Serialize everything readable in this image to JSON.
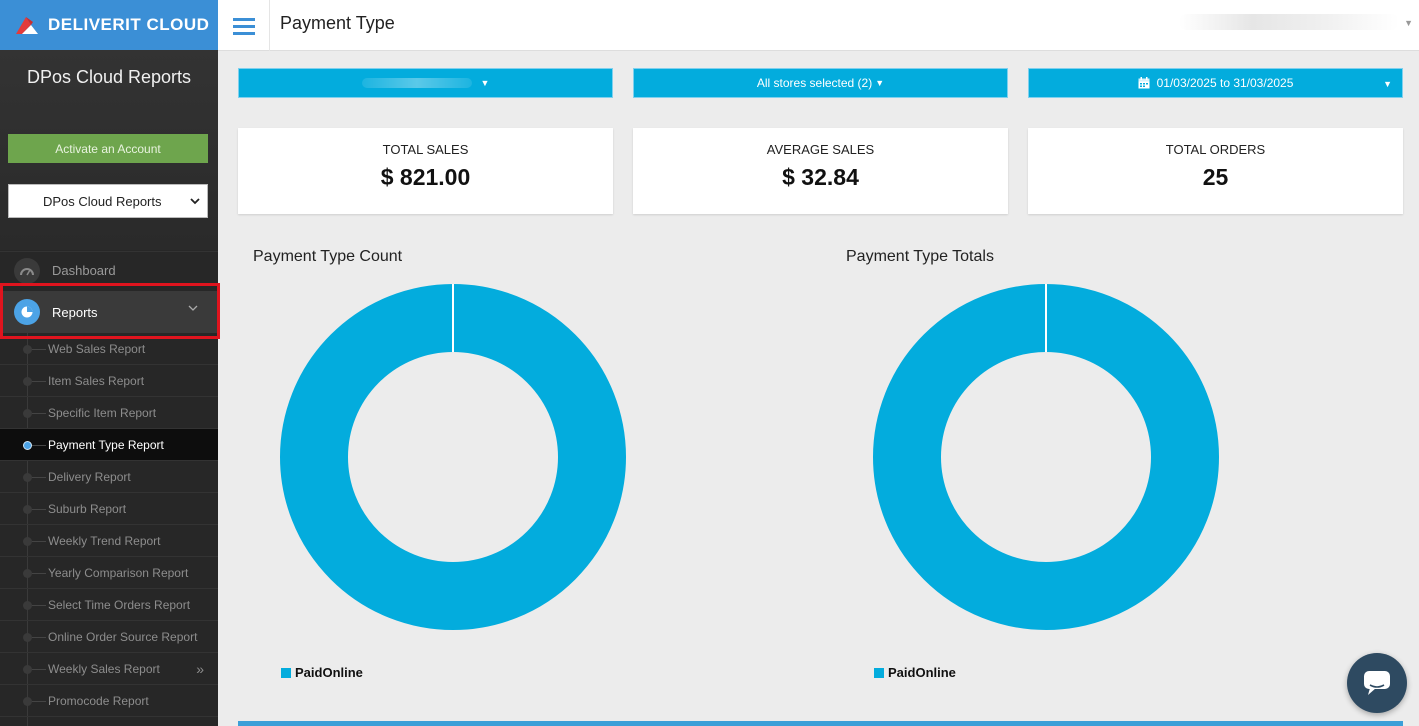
{
  "brand": {
    "name": "DELIVERIT CLOUD"
  },
  "sidebar": {
    "title": "DPos Cloud Reports",
    "activate_label": "Activate an Account",
    "account_select": "DPos Cloud Reports",
    "nav": {
      "dashboard": "Dashboard",
      "reports": "Reports"
    },
    "sub_items": [
      {
        "label": "Web Sales Report"
      },
      {
        "label": "Item Sales Report"
      },
      {
        "label": "Specific Item Report"
      },
      {
        "label": "Payment Type Report"
      },
      {
        "label": "Delivery Report"
      },
      {
        "label": "Suburb Report"
      },
      {
        "label": "Weekly Trend Report"
      },
      {
        "label": "Yearly Comparison Report"
      },
      {
        "label": "Select Time Orders Report"
      },
      {
        "label": "Online Order Source Report"
      },
      {
        "label": "Weekly Sales Report"
      },
      {
        "label": "Promocode Report"
      }
    ],
    "active_item": "Payment Type Report"
  },
  "header": {
    "title": "Payment Type"
  },
  "filters": {
    "stores": "All stores selected (2)",
    "date_range": "01/03/2025 to 31/03/2025"
  },
  "stats": {
    "total_sales_label": "TOTAL SALES",
    "total_sales_value": "$ 821.00",
    "average_sales_label": "AVERAGE SALES",
    "average_sales_value": "$ 32.84",
    "total_orders_label": "TOTAL ORDERS",
    "total_orders_value": "25"
  },
  "chart_data": [
    {
      "type": "pie",
      "title": "Payment Type Count",
      "categories": [
        "PaidOnline"
      ],
      "values": [
        25
      ],
      "colors": [
        "#03acdd"
      ],
      "legend": "bottom-left"
    },
    {
      "type": "pie",
      "title": "Payment Type Totals",
      "categories": [
        "PaidOnline"
      ],
      "values": [
        821.0
      ],
      "colors": [
        "#03acdd"
      ],
      "legend": "bottom-left"
    }
  ],
  "colors": {
    "accent": "#03acdd",
    "brand": "#3b8fd6",
    "highlight": "#e0141e",
    "activate": "#6ea54d"
  },
  "icons": [
    "deliverit-logo-icon",
    "hamburger-menu-icon",
    "dashboard-gauge-icon",
    "pie-chart-icon",
    "chevron-down-icon",
    "calendar-icon",
    "double-chevron-right-icon",
    "chat-icon"
  ]
}
